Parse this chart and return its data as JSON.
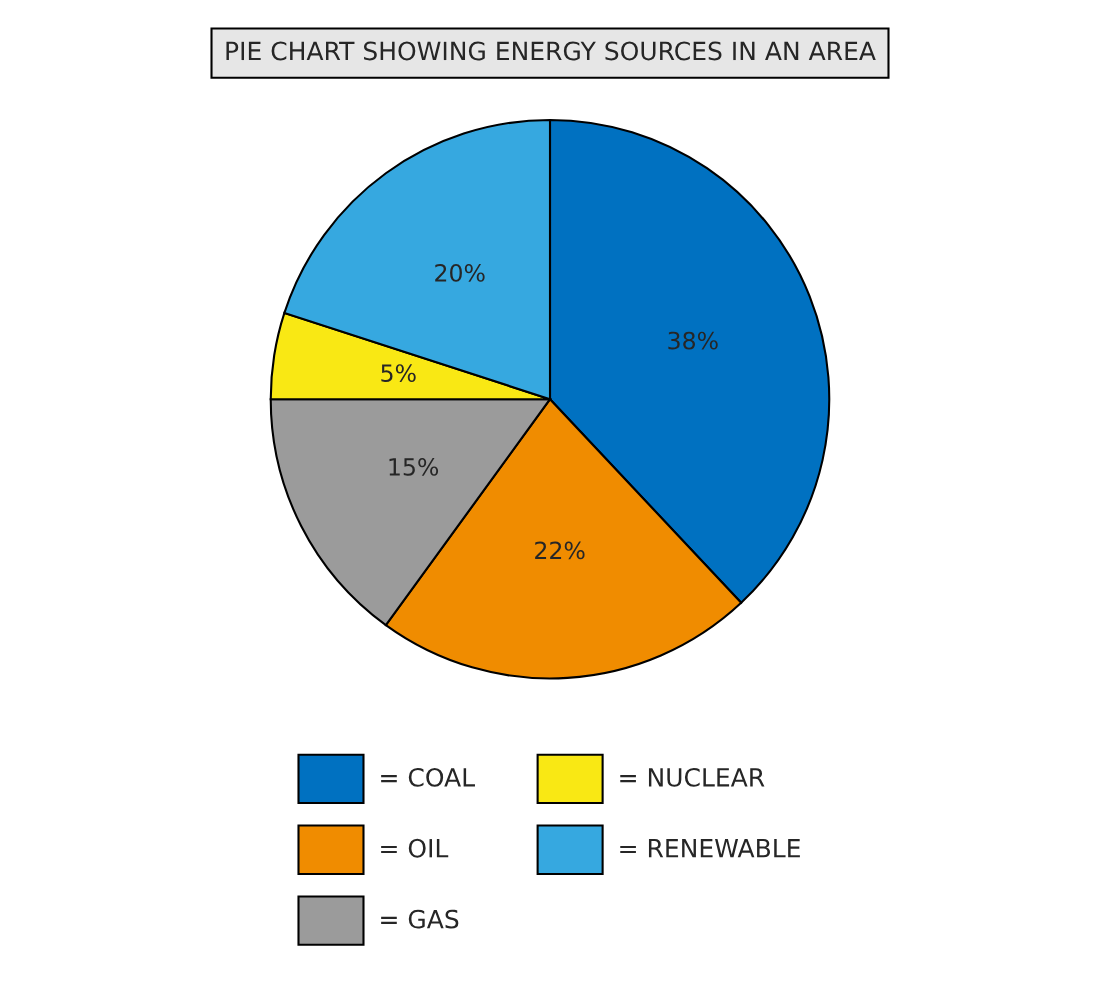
{
  "chart_data": {
    "type": "pie",
    "title": "PIE CHART SHOWING ENERGY SOURCES IN AN AREA",
    "categories": [
      "= COAL",
      "= OIL",
      "= GAS",
      "= NUCLEAR",
      "= RENEWABLE"
    ],
    "values": [
      38,
      22,
      15,
      5,
      20
    ],
    "value_labels": [
      "38%",
      "22%",
      "15%",
      "5%",
      "20%"
    ],
    "colors": [
      "#0071c1",
      "#f08c00",
      "#9b9b9b",
      "#f9e814",
      "#36a8e0"
    ],
    "legend": "bottom"
  }
}
